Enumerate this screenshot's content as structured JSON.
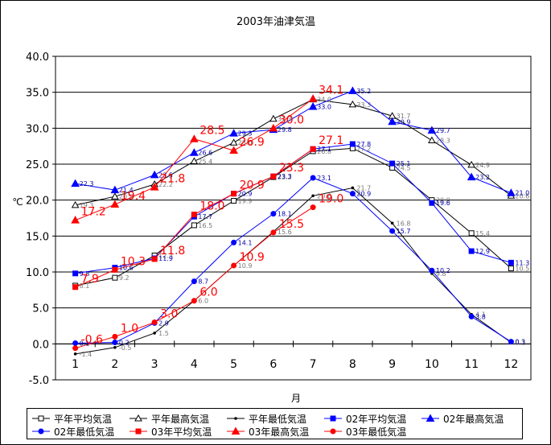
{
  "chart_data": {
    "type": "line",
    "title": "2003年油津気温",
    "xlabel": "月",
    "ylabel": "℃",
    "categories": [
      "1",
      "2",
      "3",
      "4",
      "5",
      "6",
      "7",
      "8",
      "9",
      "10",
      "11",
      "12"
    ],
    "yticks": [
      "40.0",
      "35.0",
      "30.0",
      "25.0",
      "20.0",
      "15.0",
      "10.0",
      "5.0",
      "0.0",
      "-5.0"
    ],
    "ylim": [
      -5,
      40
    ],
    "grid": "horizontal",
    "legend_position": "bottom",
    "series": [
      {
        "name": "平年平均気温",
        "color": "#000000",
        "marker": "square-open",
        "values": [
          8.1,
          9.2,
          12.3,
          16.5,
          19.9,
          23.2,
          26.8,
          27.2,
          24.5,
          20.0,
          15.4,
          10.5
        ]
      },
      {
        "name": "平年最高気温",
        "color": "#000000",
        "marker": "triangle-open",
        "values": [
          19.3,
          20.5,
          22.2,
          25.4,
          28.0,
          31.3,
          34.0,
          33.3,
          31.7,
          28.3,
          24.9,
          20.6
        ]
      },
      {
        "name": "平年最低気温",
        "color": "#000000",
        "marker": "dot",
        "values": [
          -1.4,
          -0.5,
          1.5,
          6.0,
          10.9,
          15.6,
          20.6,
          21.7,
          16.8,
          9.8,
          4.1,
          0.2
        ]
      },
      {
        "name": "02年平均気温",
        "color": "#0000ff",
        "marker": "square",
        "values": [
          9.8,
          10.6,
          11.9,
          17.7,
          20.9,
          23.3,
          27.1,
          27.8,
          25.1,
          19.6,
          12.9,
          11.3
        ]
      },
      {
        "name": "02年最高気温",
        "color": "#0000ff",
        "marker": "triangle",
        "values": [
          22.3,
          21.4,
          23.5,
          26.6,
          29.3,
          29.8,
          33.0,
          35.2,
          30.9,
          29.7,
          23.2,
          21.0
        ]
      },
      {
        "name": "02年最低気温",
        "color": "#0000ff",
        "marker": "circle",
        "values": [
          0.1,
          0.2,
          2.9,
          8.7,
          14.1,
          18.1,
          23.1,
          20.9,
          15.7,
          10.2,
          3.8,
          0.3
        ]
      },
      {
        "name": "03年平均気温",
        "color": "#ff0000",
        "marker": "square",
        "values": [
          7.9,
          10.3,
          11.8,
          18.0,
          20.9,
          23.3,
          27.1,
          null,
          null,
          null,
          null,
          null
        ]
      },
      {
        "name": "03年最高気温",
        "color": "#ff0000",
        "marker": "triangle",
        "values": [
          17.2,
          19.4,
          21.8,
          28.5,
          26.9,
          30.0,
          34.1,
          null,
          null,
          null,
          null,
          null
        ]
      },
      {
        "name": "03年最低気温",
        "color": "#ff0000",
        "marker": "circle",
        "values": [
          -0.6,
          1.0,
          3.0,
          6.0,
          10.9,
          15.5,
          19.0,
          null,
          null,
          null,
          null,
          null
        ]
      }
    ]
  }
}
